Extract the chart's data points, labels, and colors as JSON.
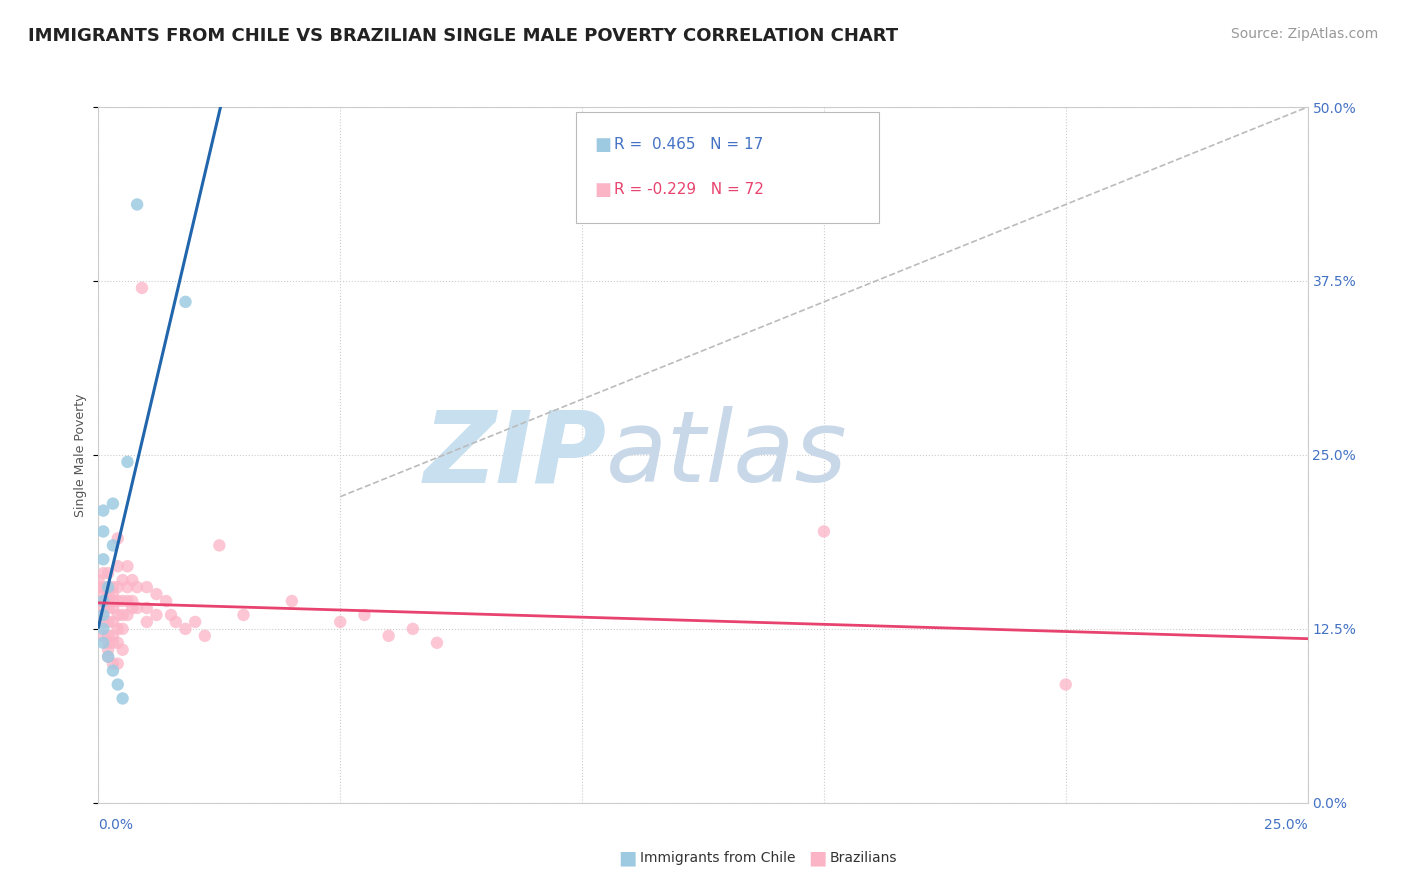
{
  "title": "IMMIGRANTS FROM CHILE VS BRAZILIAN SINGLE MALE POVERTY CORRELATION CHART",
  "source": "Source: ZipAtlas.com",
  "ylabel": "Single Male Poverty",
  "ytick_values": [
    0.0,
    0.125,
    0.25,
    0.375,
    0.5
  ],
  "xlim": [
    0.0,
    0.25
  ],
  "ylim": [
    0.0,
    0.5
  ],
  "legend_label_blue": "Immigrants from Chile",
  "legend_label_pink": "Brazilians",
  "blue_scatter": [
    [
      0.008,
      0.43
    ],
    [
      0.018,
      0.36
    ],
    [
      0.003,
      0.215
    ],
    [
      0.006,
      0.245
    ],
    [
      0.003,
      0.185
    ],
    [
      0.001,
      0.21
    ],
    [
      0.001,
      0.195
    ],
    [
      0.001,
      0.175
    ],
    [
      0.002,
      0.155
    ],
    [
      0.001,
      0.145
    ],
    [
      0.001,
      0.135
    ],
    [
      0.001,
      0.125
    ],
    [
      0.001,
      0.115
    ],
    [
      0.002,
      0.105
    ],
    [
      0.003,
      0.095
    ],
    [
      0.004,
      0.085
    ],
    [
      0.005,
      0.075
    ]
  ],
  "pink_scatter": [
    [
      0.0,
      0.16
    ],
    [
      0.0,
      0.155
    ],
    [
      0.001,
      0.165
    ],
    [
      0.001,
      0.155
    ],
    [
      0.001,
      0.15
    ],
    [
      0.001,
      0.145
    ],
    [
      0.001,
      0.14
    ],
    [
      0.001,
      0.135
    ],
    [
      0.001,
      0.13
    ],
    [
      0.001,
      0.12
    ],
    [
      0.002,
      0.165
    ],
    [
      0.002,
      0.155
    ],
    [
      0.002,
      0.15
    ],
    [
      0.002,
      0.145
    ],
    [
      0.002,
      0.14
    ],
    [
      0.002,
      0.13
    ],
    [
      0.002,
      0.12
    ],
    [
      0.002,
      0.115
    ],
    [
      0.002,
      0.11
    ],
    [
      0.002,
      0.105
    ],
    [
      0.003,
      0.155
    ],
    [
      0.003,
      0.15
    ],
    [
      0.003,
      0.145
    ],
    [
      0.003,
      0.14
    ],
    [
      0.003,
      0.13
    ],
    [
      0.003,
      0.12
    ],
    [
      0.003,
      0.115
    ],
    [
      0.003,
      0.1
    ],
    [
      0.004,
      0.19
    ],
    [
      0.004,
      0.17
    ],
    [
      0.004,
      0.155
    ],
    [
      0.004,
      0.145
    ],
    [
      0.004,
      0.135
    ],
    [
      0.004,
      0.125
    ],
    [
      0.004,
      0.115
    ],
    [
      0.004,
      0.1
    ],
    [
      0.005,
      0.16
    ],
    [
      0.005,
      0.145
    ],
    [
      0.005,
      0.135
    ],
    [
      0.005,
      0.125
    ],
    [
      0.005,
      0.11
    ],
    [
      0.006,
      0.17
    ],
    [
      0.006,
      0.155
    ],
    [
      0.006,
      0.145
    ],
    [
      0.006,
      0.135
    ],
    [
      0.007,
      0.16
    ],
    [
      0.007,
      0.145
    ],
    [
      0.007,
      0.14
    ],
    [
      0.008,
      0.155
    ],
    [
      0.008,
      0.14
    ],
    [
      0.009,
      0.37
    ],
    [
      0.01,
      0.155
    ],
    [
      0.01,
      0.14
    ],
    [
      0.01,
      0.13
    ],
    [
      0.012,
      0.15
    ],
    [
      0.012,
      0.135
    ],
    [
      0.014,
      0.145
    ],
    [
      0.015,
      0.135
    ],
    [
      0.016,
      0.13
    ],
    [
      0.018,
      0.125
    ],
    [
      0.02,
      0.13
    ],
    [
      0.022,
      0.12
    ],
    [
      0.025,
      0.185
    ],
    [
      0.03,
      0.135
    ],
    [
      0.04,
      0.145
    ],
    [
      0.05,
      0.13
    ],
    [
      0.055,
      0.135
    ],
    [
      0.06,
      0.12
    ],
    [
      0.065,
      0.125
    ],
    [
      0.07,
      0.115
    ],
    [
      0.15,
      0.195
    ],
    [
      0.2,
      0.085
    ]
  ],
  "blue_color": "#9ecae1",
  "pink_color": "#fbb4c6",
  "blue_line_color": "#2166ac",
  "pink_line_color": "#e8436e",
  "diag_color": "#bbbbbb",
  "background_color": "#ffffff",
  "grid_color": "#cccccc",
  "watermark_zip_color": "#c8dff0",
  "watermark_atlas_color": "#c8d8e8",
  "title_fontsize": 13,
  "axis_label_fontsize": 9,
  "tick_fontsize": 10,
  "source_fontsize": 10,
  "legend_R_blue": "R =  0.465",
  "legend_N_blue": "N = 17",
  "legend_R_pink": "R = -0.229",
  "legend_N_pink": "N = 72"
}
